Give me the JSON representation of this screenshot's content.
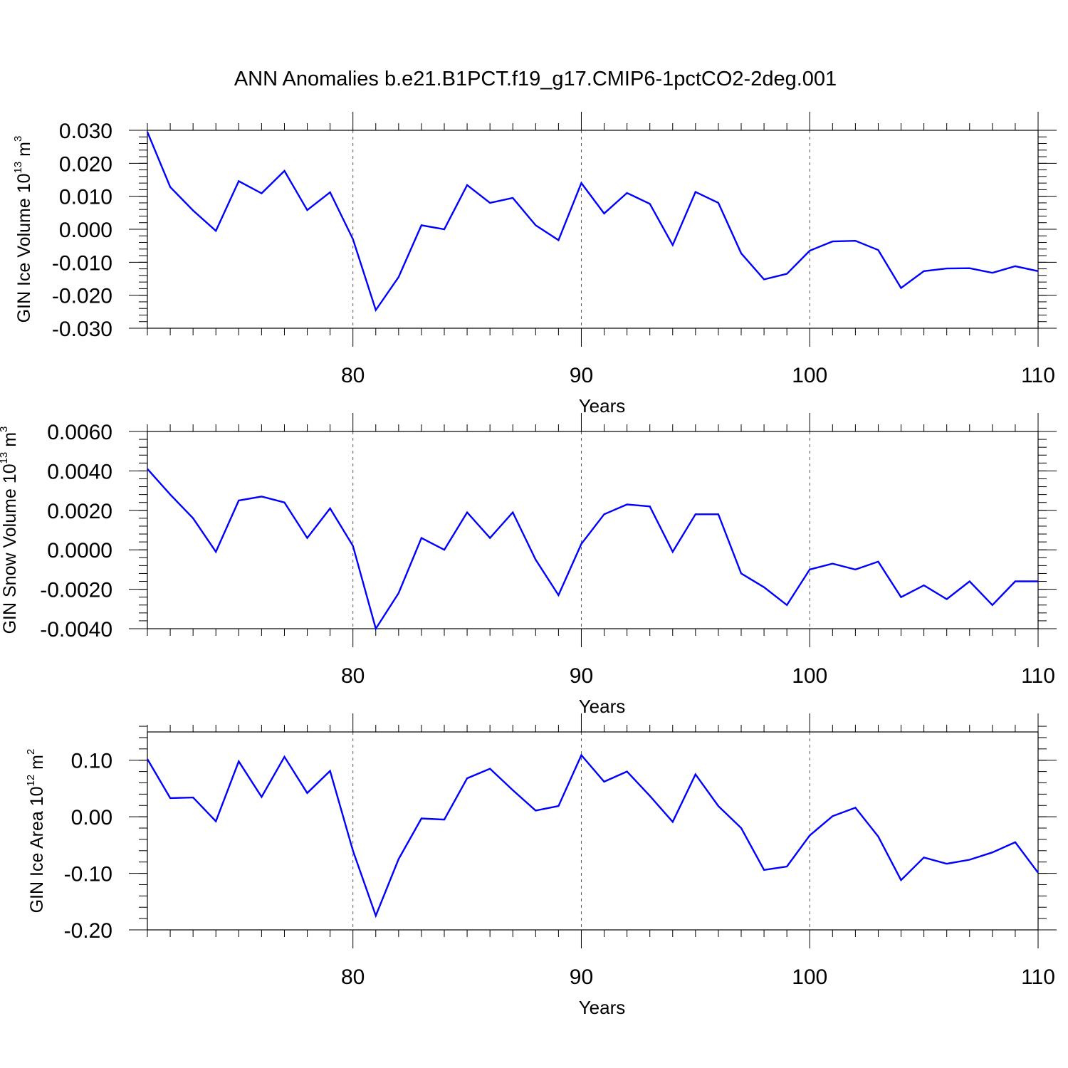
{
  "figure": {
    "title": "ANN Anomalies b.e21.B1PCT.f19_g17.CMIP6-1pctCO2-2deg.001"
  },
  "chart_data": [
    {
      "type": "line",
      "ylabel": {
        "base": "GIN Ice Volume 10",
        "exp": "13",
        "unit": " m",
        "unit_exp": "3"
      },
      "xlabel": "Years",
      "xlim": [
        71,
        110
      ],
      "ylim": [
        -0.03,
        0.03
      ],
      "x_ticks": [
        80,
        90,
        100,
        110
      ],
      "x_tick_labels": [
        "80",
        "90",
        "100",
        "110"
      ],
      "y_ticks": [
        0.03,
        0.02,
        0.01,
        0.0,
        -0.01,
        -0.02,
        -0.03
      ],
      "y_tick_labels": [
        "0.030",
        "0.020",
        "0.010",
        "0.000",
        "-0.010",
        "-0.020",
        "-0.030"
      ],
      "y_minor_step": 0.002,
      "grid": "dashed vertical lines at major x ticks",
      "line_color": "#0000ff",
      "x": [
        71,
        72,
        73,
        74,
        75,
        76,
        77,
        78,
        79,
        80,
        81,
        82,
        83,
        84,
        85,
        86,
        87,
        88,
        89,
        90,
        91,
        92,
        93,
        94,
        95,
        96,
        97,
        98,
        99,
        100,
        101,
        102,
        103,
        104,
        105,
        106,
        107,
        108,
        109,
        110
      ],
      "values": [
        0.0295,
        0.0128,
        0.0057,
        -0.0005,
        0.0146,
        0.0109,
        0.0177,
        0.0058,
        0.0112,
        -0.003,
        -0.0245,
        -0.0145,
        0.0012,
        0.0,
        0.0134,
        0.008,
        0.0095,
        0.0012,
        -0.0033,
        0.014,
        0.0048,
        0.011,
        0.0077,
        -0.0048,
        0.0113,
        0.008,
        -0.0073,
        -0.0152,
        -0.0135,
        -0.0065,
        -0.0037,
        -0.0035,
        -0.0063,
        -0.0178,
        -0.0127,
        -0.0119,
        -0.0118,
        -0.0132,
        -0.0112,
        -0.0127
      ]
    },
    {
      "type": "line",
      "ylabel": {
        "base": "GIN Snow Volume 10",
        "exp": "13",
        "unit": " m",
        "unit_exp": "3"
      },
      "xlabel": "Years",
      "xlim": [
        71,
        110
      ],
      "ylim": [
        -0.004,
        0.006
      ],
      "x_ticks": [
        80,
        90,
        100,
        110
      ],
      "x_tick_labels": [
        "80",
        "90",
        "100",
        "110"
      ],
      "y_ticks": [
        0.006,
        0.004,
        0.002,
        0.0,
        -0.002,
        -0.004
      ],
      "y_tick_labels": [
        "0.0060",
        "0.0040",
        "0.0020",
        "0.0000",
        "-0.0020",
        "-0.0040"
      ],
      "y_minor_step": 0.0004,
      "grid": "dashed vertical lines at major x ticks",
      "line_color": "#0000ff",
      "x": [
        71,
        72,
        73,
        74,
        75,
        76,
        77,
        78,
        79,
        80,
        81,
        82,
        83,
        84,
        85,
        86,
        87,
        88,
        89,
        90,
        91,
        92,
        93,
        94,
        95,
        96,
        97,
        98,
        99,
        100,
        101,
        102,
        103,
        104,
        105,
        106,
        107,
        108,
        109,
        110
      ],
      "values": [
        0.0041,
        0.0028,
        0.0016,
        -0.0001,
        0.0025,
        0.0027,
        0.0024,
        0.0006,
        0.0021,
        0.0002,
        -0.004,
        -0.0022,
        0.0006,
        0.0,
        0.0019,
        0.0006,
        0.0019,
        -0.0005,
        -0.0023,
        0.0003,
        0.0018,
        0.0023,
        0.0022,
        -0.0001,
        0.0018,
        0.0018,
        -0.0012,
        -0.0019,
        -0.0028,
        -0.001,
        -0.0007,
        -0.001,
        -0.0006,
        -0.0024,
        -0.0018,
        -0.0025,
        -0.0016,
        -0.0028,
        -0.0016,
        -0.0016
      ]
    },
    {
      "type": "line",
      "ylabel": {
        "base": "GIN Ice Area 10",
        "exp": "12",
        "unit": " m",
        "unit_exp": "2"
      },
      "xlabel": "Years",
      "xlim": [
        71,
        110
      ],
      "ylim": [
        -0.2,
        0.15
      ],
      "x_ticks": [
        80,
        90,
        100,
        110
      ],
      "x_tick_labels": [
        "80",
        "90",
        "100",
        "110"
      ],
      "y_ticks": [
        0.1,
        0.0,
        -0.1,
        -0.2
      ],
      "y_tick_labels": [
        "0.10",
        "0.00",
        "-0.10",
        "-0.20"
      ],
      "y_minor_step": 0.02,
      "grid": "dashed vertical lines at major x ticks",
      "line_color": "#0000ff",
      "x": [
        71,
        72,
        73,
        74,
        75,
        76,
        77,
        78,
        79,
        80,
        81,
        82,
        83,
        84,
        85,
        86,
        87,
        88,
        89,
        90,
        91,
        92,
        93,
        94,
        95,
        96,
        97,
        98,
        99,
        100,
        101,
        102,
        103,
        104,
        105,
        106,
        107,
        108,
        109,
        110
      ],
      "values": [
        0.102,
        0.033,
        0.034,
        -0.008,
        0.098,
        0.035,
        0.106,
        0.042,
        0.081,
        -0.06,
        -0.175,
        -0.075,
        -0.003,
        -0.005,
        0.068,
        0.085,
        0.047,
        0.011,
        0.019,
        0.109,
        0.062,
        0.08,
        0.037,
        -0.009,
        0.075,
        0.019,
        -0.02,
        -0.094,
        -0.088,
        -0.033,
        0.001,
        0.016,
        -0.035,
        -0.112,
        -0.072,
        -0.083,
        -0.076,
        -0.063,
        -0.045,
        -0.099
      ]
    }
  ]
}
